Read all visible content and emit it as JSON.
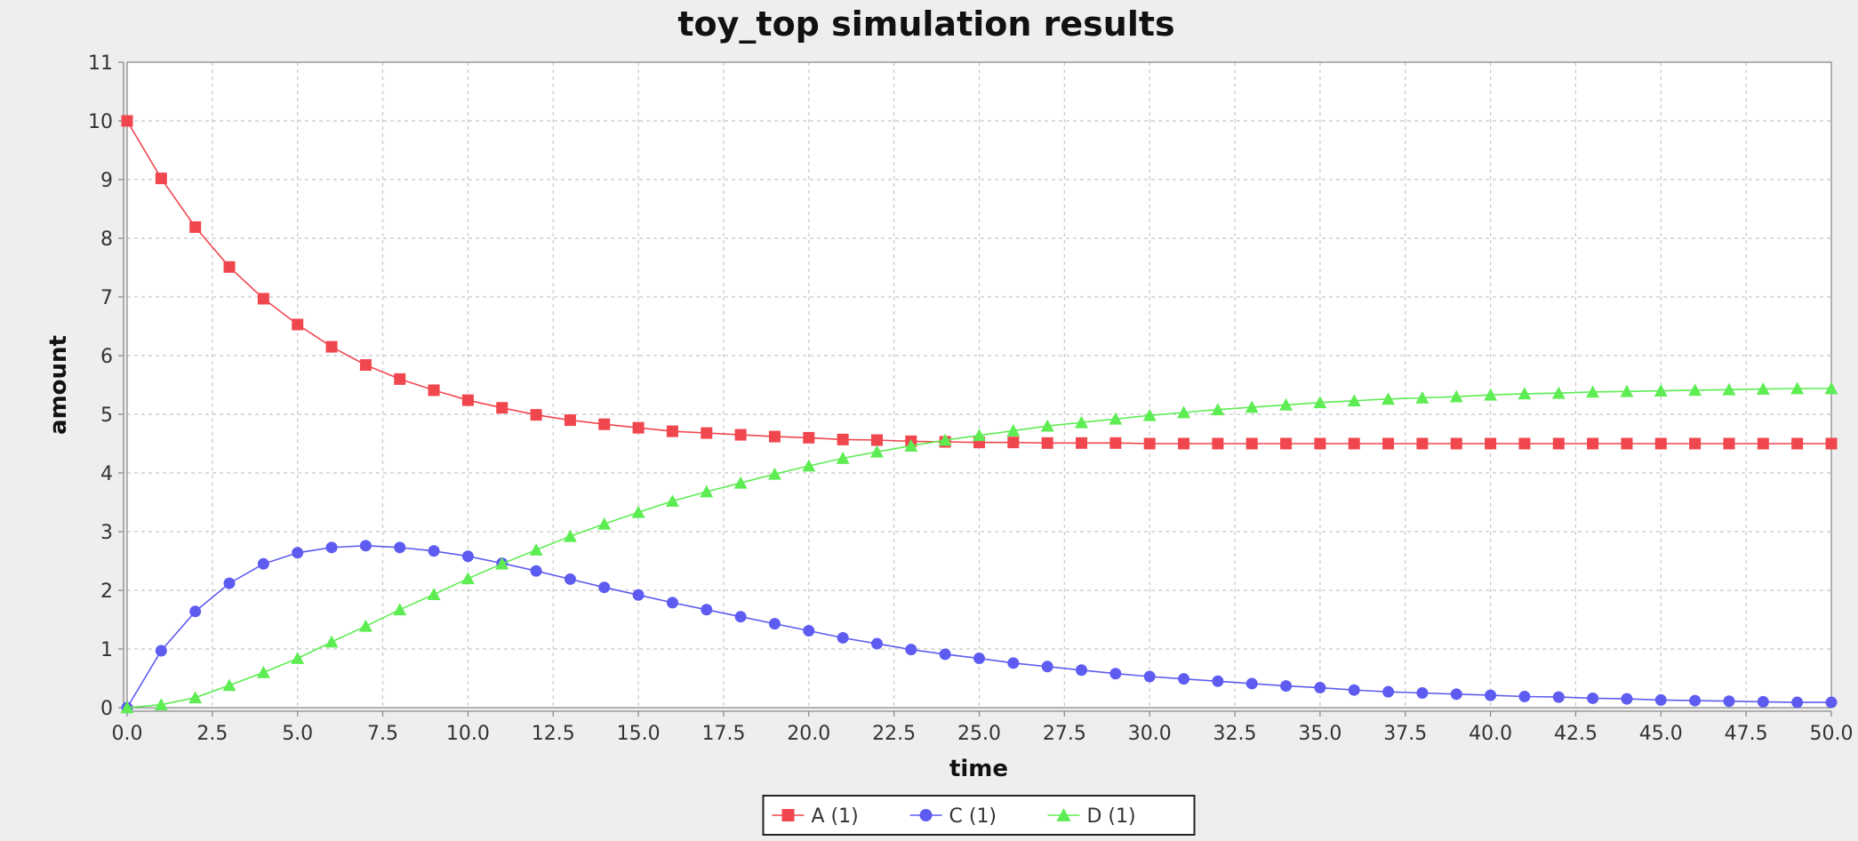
{
  "chart_data": {
    "type": "line",
    "title": "toy_top simulation results",
    "xlabel": "time",
    "ylabel": "amount",
    "xlim": [
      0,
      50
    ],
    "ylim": [
      0,
      11
    ],
    "x_ticks": [
      "0.0",
      "2.5",
      "5.0",
      "7.5",
      "10.0",
      "12.5",
      "15.0",
      "17.5",
      "20.0",
      "22.5",
      "25.0",
      "27.5",
      "30.0",
      "32.5",
      "35.0",
      "37.5",
      "40.0",
      "42.5",
      "45.0",
      "47.5",
      "50.0"
    ],
    "y_ticks": [
      "0",
      "1",
      "2",
      "3",
      "4",
      "5",
      "6",
      "7",
      "8",
      "9",
      "10",
      "11"
    ],
    "grid": true,
    "legend_position": "bottom-center",
    "x": [
      0,
      1,
      2,
      3,
      4,
      5,
      6,
      7,
      8,
      9,
      10,
      11,
      12,
      13,
      14,
      15,
      16,
      17,
      18,
      19,
      20,
      21,
      22,
      23,
      24,
      25,
      26,
      27,
      28,
      29,
      30,
      31,
      32,
      33,
      34,
      35,
      36,
      37,
      38,
      39,
      40,
      41,
      42,
      43,
      44,
      45,
      46,
      47,
      48,
      49,
      50
    ],
    "series": [
      {
        "name": "A (1)",
        "marker": "square",
        "color": "#f0474e",
        "values": [
          10.0,
          9.02,
          8.19,
          7.51,
          6.97,
          6.53,
          6.15,
          5.84,
          5.6,
          5.41,
          5.24,
          5.11,
          4.99,
          4.9,
          4.83,
          4.77,
          4.71,
          4.68,
          4.65,
          4.62,
          4.6,
          4.57,
          4.56,
          4.54,
          4.53,
          4.52,
          4.52,
          4.51,
          4.51,
          4.51,
          4.5,
          4.5,
          4.5,
          4.5,
          4.5,
          4.5,
          4.5,
          4.5,
          4.5,
          4.5,
          4.5,
          4.5,
          4.5,
          4.5,
          4.5,
          4.5,
          4.5,
          4.5,
          4.5,
          4.5,
          4.5
        ]
      },
      {
        "name": "C (1)",
        "marker": "circle",
        "color": "#5e5cf0",
        "values": [
          0.0,
          0.97,
          1.64,
          2.12,
          2.45,
          2.64,
          2.73,
          2.76,
          2.73,
          2.67,
          2.58,
          2.46,
          2.33,
          2.19,
          2.05,
          1.92,
          1.79,
          1.67,
          1.55,
          1.43,
          1.31,
          1.19,
          1.09,
          0.99,
          0.91,
          0.84,
          0.76,
          0.7,
          0.64,
          0.58,
          0.53,
          0.49,
          0.45,
          0.41,
          0.37,
          0.34,
          0.3,
          0.27,
          0.25,
          0.23,
          0.21,
          0.19,
          0.18,
          0.16,
          0.15,
          0.13,
          0.12,
          0.11,
          0.1,
          0.09,
          0.09
        ]
      },
      {
        "name": "D (1)",
        "marker": "triangle",
        "color": "#5ded53",
        "values": [
          0.0,
          0.05,
          0.17,
          0.38,
          0.6,
          0.84,
          1.12,
          1.39,
          1.67,
          1.93,
          2.2,
          2.45,
          2.69,
          2.92,
          3.13,
          3.33,
          3.52,
          3.68,
          3.83,
          3.98,
          4.12,
          4.25,
          4.36,
          4.46,
          4.56,
          4.64,
          4.72,
          4.8,
          4.86,
          4.92,
          4.98,
          5.03,
          5.08,
          5.12,
          5.16,
          5.2,
          5.23,
          5.26,
          5.28,
          5.3,
          5.33,
          5.35,
          5.36,
          5.38,
          5.39,
          5.4,
          5.41,
          5.42,
          5.43,
          5.44,
          5.44
        ]
      }
    ]
  }
}
